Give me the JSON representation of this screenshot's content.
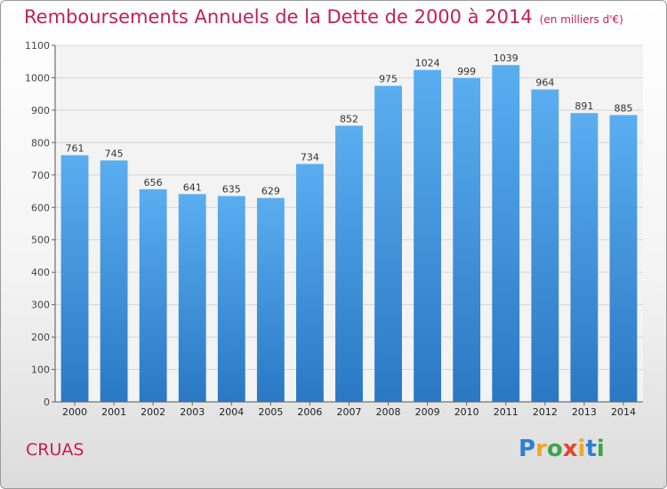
{
  "chart_data": {
    "type": "bar",
    "title": "Remboursements Annuels de la Dette de 2000 à 2014",
    "unit": "(en milliers d'€)",
    "categories": [
      "2000",
      "2001",
      "2002",
      "2003",
      "2004",
      "2005",
      "2006",
      "2007",
      "2008",
      "2009",
      "2010",
      "2011",
      "2012",
      "2013",
      "2014"
    ],
    "values": [
      761,
      745,
      656,
      641,
      635,
      629,
      734,
      852,
      975,
      1024,
      999,
      1039,
      964,
      891,
      885
    ],
    "ylim": [
      0,
      1100
    ],
    "yticks": [
      0,
      100,
      200,
      300,
      400,
      500,
      600,
      700,
      800,
      900,
      1000,
      1100
    ],
    "grid": true,
    "bar_color": "#3a8fd6"
  },
  "commune": "CRUAS",
  "logo": {
    "letters": [
      "P",
      "r",
      "o",
      "x",
      "i",
      "t",
      "i"
    ],
    "colors": [
      "#2f7fd0",
      "#f2a62a",
      "#3fa54a",
      "#e2462f",
      "#f2a62a",
      "#2f7fd0",
      "#3fa54a"
    ]
  }
}
